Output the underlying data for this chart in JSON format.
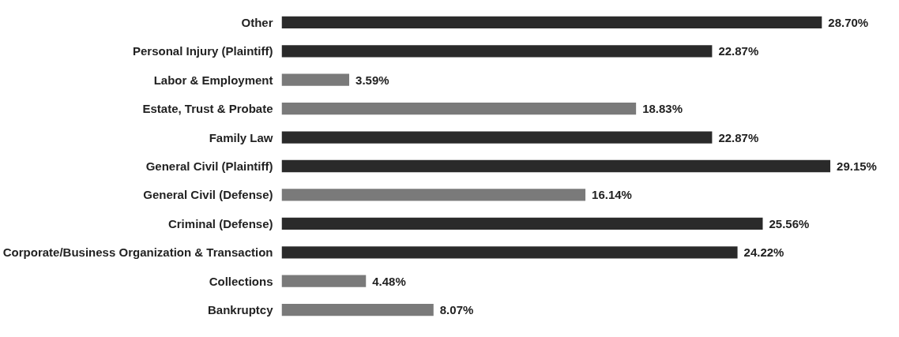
{
  "chart_data": {
    "type": "bar",
    "orientation": "horizontal",
    "categories": [
      "Other",
      "Personal Injury (Plaintiff)",
      "Labor & Employment",
      "Estate, Trust & Probate",
      "Family Law",
      "General Civil (Plaintiff)",
      "General Civil (Defense)",
      "Criminal (Defense)",
      "Corporate/Business Organization & Transaction",
      "Collections",
      "Bankruptcy"
    ],
    "values": [
      28.7,
      22.87,
      3.59,
      18.83,
      22.87,
      29.15,
      16.14,
      25.56,
      24.22,
      4.48,
      8.07
    ],
    "colors": [
      "#2a2a2a",
      "#2a2a2a",
      "#7a7a7a",
      "#7a7a7a",
      "#2a2a2a",
      "#2a2a2a",
      "#7a7a7a",
      "#2a2a2a",
      "#2a2a2a",
      "#7a7a7a",
      "#7a7a7a"
    ],
    "value_labels": [
      "28.70%",
      "22.87%",
      "3.59%",
      "18.83%",
      "22.87%",
      "29.15%",
      "16.14%",
      "25.56%",
      "24.22%",
      "4.48%",
      "8.07%"
    ],
    "grid": false,
    "tick_labels": "y"
  }
}
